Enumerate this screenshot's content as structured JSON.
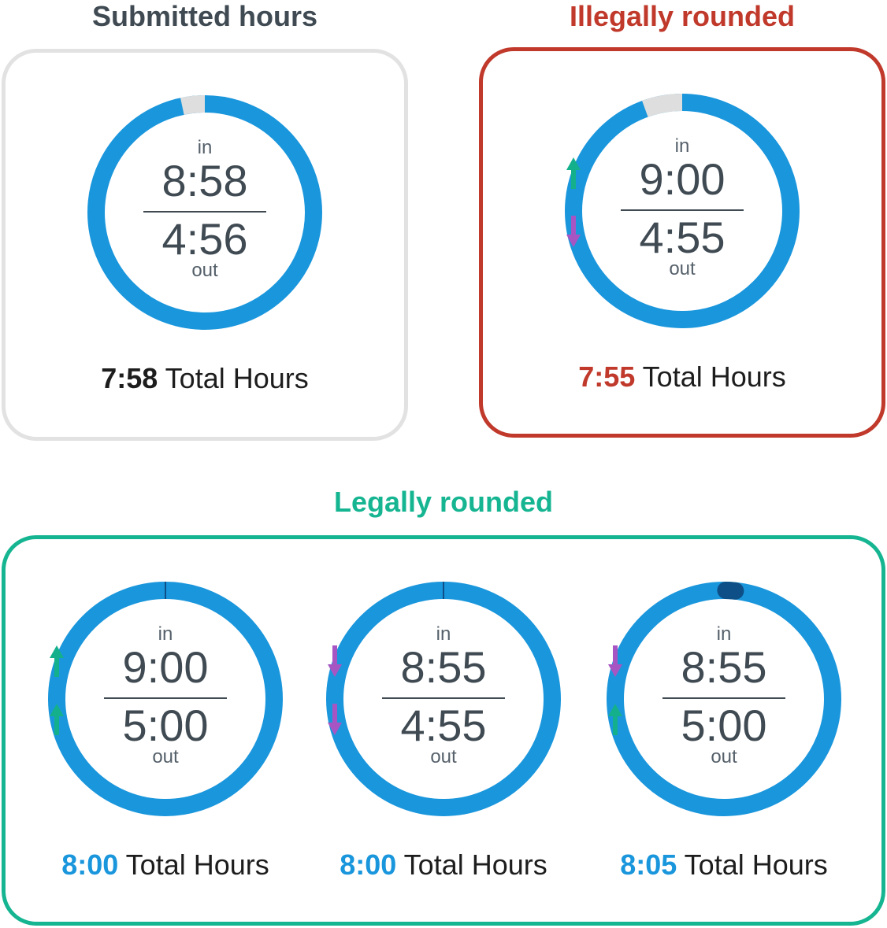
{
  "colors": {
    "ring": "#1a96dc",
    "ring_gap": "#dedede",
    "arrow_up": "#14b08c",
    "arrow_down": "#a855c4",
    "submitted": "#d9d9d9",
    "illegal": "#c0392b",
    "legal": "#16b592"
  },
  "labels": {
    "in": "in",
    "out": "out",
    "total_suffix": "Total Hours"
  },
  "submitted": {
    "heading": "Submitted hours",
    "in": {
      "time": "8:58",
      "arrow": "none"
    },
    "out": {
      "time": "4:56",
      "arrow": "none"
    },
    "total": "7:58"
  },
  "illegal": {
    "heading": "Illegally rounded",
    "in": {
      "time": "9:00",
      "arrow": "up-arrow-icon"
    },
    "out": {
      "time": "4:55",
      "arrow": "down-arrow-icon"
    },
    "total": "7:55"
  },
  "legal": {
    "heading": "Legally rounded",
    "items": [
      {
        "in": {
          "time": "9:00",
          "arrow": "up-arrow-icon"
        },
        "out": {
          "time": "5:00",
          "arrow": "up-arrow-icon"
        },
        "total": "8:00"
      },
      {
        "in": {
          "time": "8:55",
          "arrow": "down-arrow-icon"
        },
        "out": {
          "time": "4:55",
          "arrow": "down-arrow-icon"
        },
        "total": "8:00"
      },
      {
        "in": {
          "time": "8:55",
          "arrow": "down-arrow-icon"
        },
        "out": {
          "time": "5:00",
          "arrow": "up-arrow-icon"
        },
        "total": "8:05"
      }
    ]
  }
}
